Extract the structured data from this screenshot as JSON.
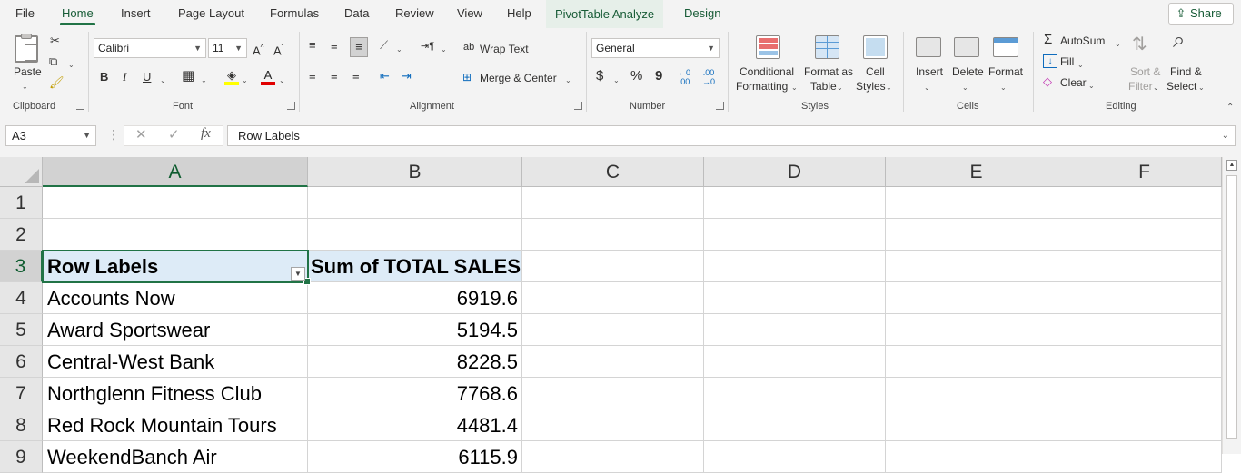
{
  "tabs": [
    "File",
    "Home",
    "Insert",
    "Page Layout",
    "Formulas",
    "Data",
    "Review",
    "View",
    "Help",
    "PivotTable Analyze",
    "Design"
  ],
  "active_tab": "Home",
  "share_label": "Share",
  "ribbon": {
    "clipboard": {
      "paste": "Paste",
      "group": "Clipboard"
    },
    "font": {
      "name": "Calibri",
      "size": "11",
      "bold": "B",
      "italic": "I",
      "underline": "U",
      "group": "Font"
    },
    "alignment": {
      "wrap": "Wrap Text",
      "merge": "Merge & Center",
      "group": "Alignment"
    },
    "number": {
      "format": "General",
      "currency": "$",
      "percent": "%",
      "comma": "9",
      "group": "Number"
    },
    "styles": {
      "conditional_1": "Conditional",
      "conditional_2": "Formatting",
      "format_table_1": "Format as",
      "format_table_2": "Table",
      "cell_styles_1": "Cell",
      "cell_styles_2": "Styles",
      "group": "Styles"
    },
    "cells": {
      "insert": "Insert",
      "delete": "Delete",
      "format": "Format",
      "group": "Cells"
    },
    "editing": {
      "autosum": "AutoSum",
      "fill": "Fill",
      "clear": "Clear",
      "sort_1": "Sort &",
      "sort_2": "Filter",
      "find_1": "Find &",
      "find_2": "Select",
      "group": "Editing"
    }
  },
  "formula_bar": {
    "name_box": "A3",
    "fx": "fx",
    "content": "Row Labels"
  },
  "columns": [
    "A",
    "B",
    "C",
    "D",
    "E",
    "F"
  ],
  "rows": [
    "1",
    "2",
    "3",
    "4",
    "5",
    "6",
    "7",
    "8",
    "9"
  ],
  "pivot": {
    "header": [
      "Row Labels",
      "Sum of TOTAL SALES"
    ],
    "rows": [
      [
        "Accounts Now",
        "6919.6"
      ],
      [
        "Award Sportswear",
        "5194.5"
      ],
      [
        "Central-West Bank",
        "8228.5"
      ],
      [
        "Northglenn Fitness Club",
        "7768.6"
      ],
      [
        "Red Rock Mountain Tours",
        "4481.4"
      ],
      [
        "WeekendBanch Air",
        "6115.9"
      ]
    ]
  }
}
